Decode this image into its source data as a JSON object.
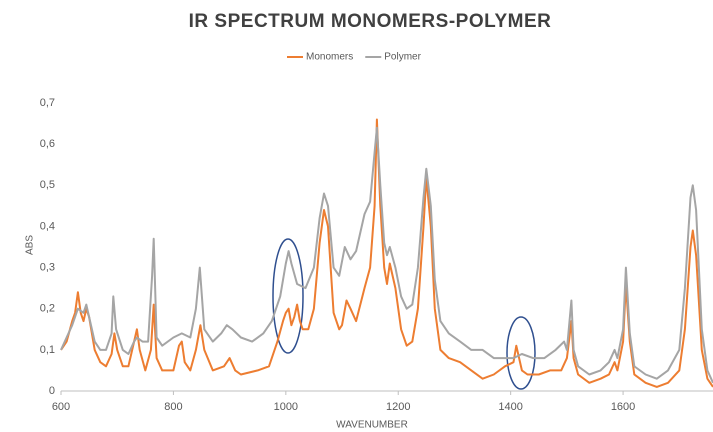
{
  "chart_data": {
    "type": "line",
    "title": "IR SPECTRUM MONOMERS-POLYMER",
    "x_label": "WAVENUMBER",
    "y_label": "ABS",
    "xlim": [
      600,
      1760
    ],
    "ylim": [
      0,
      0.7
    ],
    "xticks": [
      600,
      800,
      1000,
      1200,
      1400,
      1600
    ],
    "yticks": [
      0,
      {
        "value": 0.1,
        "label": "0,1"
      },
      {
        "value": 0.2,
        "label": "0,2"
      },
      {
        "value": 0.3,
        "label": "0,3"
      },
      {
        "value": 0.4,
        "label": "0,4"
      },
      {
        "value": 0.5,
        "label": "0,5"
      },
      {
        "value": 0.6,
        "label": "0,6"
      },
      {
        "value": 0.7,
        "label": "0,7"
      }
    ],
    "grid": false,
    "legend": "top",
    "series": [
      {
        "name": "Monomers",
        "color": "#ed7d31",
        "x": [
          600,
          610,
          620,
          625,
          630,
          635,
          640,
          645,
          650,
          660,
          670,
          680,
          690,
          695,
          700,
          710,
          720,
          730,
          735,
          740,
          750,
          760,
          765,
          770,
          780,
          800,
          810,
          815,
          820,
          830,
          840,
          848,
          855,
          870,
          890,
          900,
          910,
          920,
          950,
          970,
          985,
          995,
          1000,
          1005,
          1010,
          1015,
          1020,
          1025,
          1030,
          1040,
          1050,
          1060,
          1068,
          1075,
          1085,
          1095,
          1100,
          1108,
          1115,
          1125,
          1140,
          1150,
          1158,
          1162,
          1168,
          1175,
          1180,
          1185,
          1195,
          1205,
          1215,
          1225,
          1235,
          1245,
          1250,
          1258,
          1265,
          1275,
          1290,
          1310,
          1330,
          1350,
          1370,
          1390,
          1405,
          1410,
          1415,
          1420,
          1430,
          1450,
          1470,
          1490,
          1500,
          1508,
          1512,
          1520,
          1540,
          1560,
          1575,
          1585,
          1590,
          1600,
          1605,
          1612,
          1620,
          1640,
          1660,
          1680,
          1700,
          1710,
          1720,
          1724,
          1730,
          1740,
          1750,
          1760
        ],
        "values": [
          0.1,
          0.12,
          0.17,
          0.19,
          0.24,
          0.19,
          0.17,
          0.2,
          0.18,
          0.1,
          0.07,
          0.06,
          0.09,
          0.14,
          0.1,
          0.06,
          0.06,
          0.12,
          0.15,
          0.1,
          0.05,
          0.1,
          0.21,
          0.08,
          0.05,
          0.05,
          0.11,
          0.12,
          0.07,
          0.05,
          0.1,
          0.16,
          0.1,
          0.05,
          0.06,
          0.08,
          0.05,
          0.04,
          0.05,
          0.06,
          0.12,
          0.17,
          0.19,
          0.2,
          0.16,
          0.18,
          0.21,
          0.17,
          0.15,
          0.15,
          0.2,
          0.36,
          0.44,
          0.4,
          0.19,
          0.15,
          0.16,
          0.22,
          0.2,
          0.17,
          0.25,
          0.3,
          0.45,
          0.66,
          0.45,
          0.3,
          0.26,
          0.31,
          0.25,
          0.15,
          0.11,
          0.12,
          0.2,
          0.4,
          0.52,
          0.4,
          0.2,
          0.1,
          0.08,
          0.07,
          0.05,
          0.03,
          0.04,
          0.06,
          0.07,
          0.11,
          0.08,
          0.05,
          0.04,
          0.04,
          0.05,
          0.05,
          0.08,
          0.17,
          0.08,
          0.04,
          0.02,
          0.03,
          0.04,
          0.07,
          0.05,
          0.12,
          0.26,
          0.12,
          0.04,
          0.02,
          0.01,
          0.02,
          0.05,
          0.15,
          0.35,
          0.39,
          0.33,
          0.1,
          0.03,
          0.01
        ]
      },
      {
        "name": "Polymer",
        "color": "#a5a5a5",
        "x": [
          600,
          610,
          620,
          630,
          640,
          645,
          650,
          660,
          670,
          680,
          690,
          693,
          698,
          710,
          720,
          730,
          735,
          745,
          755,
          762,
          765,
          770,
          780,
          800,
          815,
          830,
          840,
          847,
          855,
          870,
          885,
          895,
          905,
          920,
          940,
          960,
          975,
          990,
          1000,
          1005,
          1010,
          1020,
          1035,
          1050,
          1060,
          1068,
          1075,
          1085,
          1095,
          1105,
          1115,
          1125,
          1140,
          1150,
          1158,
          1162,
          1168,
          1175,
          1180,
          1185,
          1195,
          1205,
          1215,
          1225,
          1235,
          1245,
          1250,
          1258,
          1265,
          1275,
          1290,
          1310,
          1330,
          1350,
          1370,
          1390,
          1405,
          1420,
          1440,
          1460,
          1480,
          1495,
          1500,
          1508,
          1512,
          1520,
          1540,
          1560,
          1575,
          1585,
          1590,
          1600,
          1605,
          1612,
          1620,
          1640,
          1660,
          1680,
          1700,
          1710,
          1720,
          1724,
          1730,
          1740,
          1750,
          1760
        ],
        "values": [
          0.1,
          0.13,
          0.16,
          0.2,
          0.19,
          0.21,
          0.18,
          0.12,
          0.1,
          0.1,
          0.14,
          0.23,
          0.15,
          0.1,
          0.09,
          0.12,
          0.13,
          0.12,
          0.12,
          0.28,
          0.37,
          0.13,
          0.11,
          0.13,
          0.14,
          0.13,
          0.2,
          0.3,
          0.15,
          0.12,
          0.14,
          0.16,
          0.15,
          0.13,
          0.12,
          0.14,
          0.17,
          0.23,
          0.31,
          0.34,
          0.31,
          0.26,
          0.25,
          0.3,
          0.42,
          0.48,
          0.45,
          0.3,
          0.28,
          0.35,
          0.32,
          0.34,
          0.43,
          0.46,
          0.58,
          0.64,
          0.5,
          0.36,
          0.33,
          0.35,
          0.3,
          0.23,
          0.2,
          0.21,
          0.3,
          0.47,
          0.54,
          0.45,
          0.27,
          0.17,
          0.14,
          0.12,
          0.1,
          0.1,
          0.08,
          0.08,
          0.08,
          0.09,
          0.08,
          0.08,
          0.1,
          0.12,
          0.1,
          0.22,
          0.1,
          0.06,
          0.04,
          0.05,
          0.07,
          0.1,
          0.08,
          0.15,
          0.3,
          0.14,
          0.06,
          0.04,
          0.03,
          0.05,
          0.1,
          0.25,
          0.47,
          0.5,
          0.44,
          0.15,
          0.05,
          0.02
        ]
      }
    ]
  }
}
